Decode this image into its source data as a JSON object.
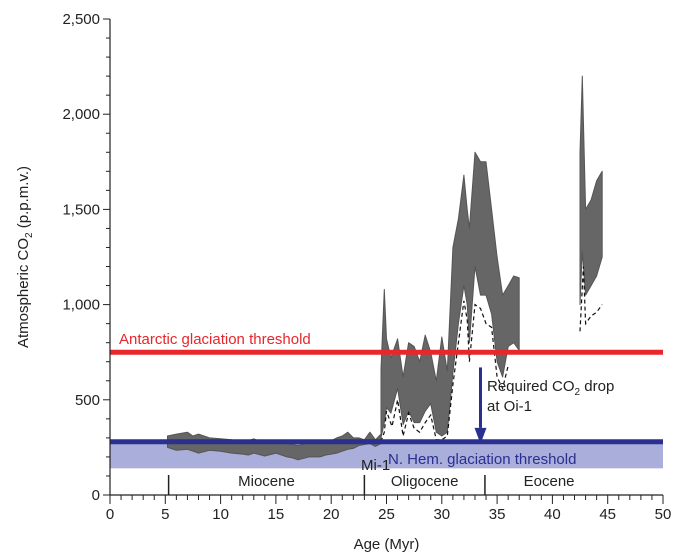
{
  "chart_data": {
    "type": "area",
    "title": "",
    "xlabel": "Age (Myr)",
    "ylabel": "Atmospheric CO₂ (p.p.m.v.)",
    "ylabel_parts": [
      "Atmospheric CO",
      "2",
      " (p.p.m.v.)"
    ],
    "xlim": [
      0,
      50
    ],
    "ylim": [
      0,
      2500
    ],
    "x_ticks": [
      0,
      5,
      10,
      15,
      20,
      25,
      30,
      35,
      40,
      45,
      50
    ],
    "x_tick_labels": [
      "0",
      "5",
      "10",
      "15",
      "20",
      "25",
      "30",
      "35",
      "40",
      "45",
      "50"
    ],
    "y_ticks": [
      0,
      500,
      1000,
      1500,
      2000,
      2500
    ],
    "y_tick_labels": [
      "0",
      "500",
      "1,000",
      "1,500",
      "2,000",
      "2,500"
    ],
    "grid": false,
    "colors": {
      "envelope": "#666666",
      "envelope_edge": "#555555",
      "antarctic": "#e8262b",
      "nhem_line": "#2b2f8f",
      "nhem_band": "#a9aedb",
      "arrow": "#2b2f8f"
    },
    "thresholds": [
      {
        "name": "Antarctic glaciation threshold",
        "value": 750
      },
      {
        "name": "N. Hem. glaciation threshold",
        "value": 280,
        "band": [
          140,
          280
        ]
      }
    ],
    "annotations": {
      "antarctic_label": "Antarctic glaciation threshold",
      "nhem_label": "N. Hem. glaciation threshold",
      "required_drop_line1_parts": [
        "Required CO",
        "2",
        " drop"
      ],
      "required_drop_line2_parts": [
        "at Oi-1"
      ],
      "mi1_label": "Mi-1"
    },
    "arrow": {
      "x": 33.5,
      "y_from": 670,
      "y_to": 300
    },
    "epochs": [
      {
        "name": "Miocene",
        "start": 5.3,
        "end": 23.0
      },
      {
        "name": "Oligocene",
        "start": 23.0,
        "end": 33.9
      },
      {
        "name": "Eocene",
        "start": 33.9,
        "end": 50
      }
    ],
    "series": [
      {
        "x": [
          5.2,
          6.0,
          7.0,
          7.5,
          8.0,
          9.0,
          10.0,
          11.0,
          12.0,
          12.5,
          13.0,
          14.0,
          15.0,
          16.0,
          16.5,
          17.0,
          18.0,
          19.0,
          19.5,
          20.0,
          20.5,
          21.0,
          21.5,
          22.0,
          22.5,
          23.0,
          23.5,
          24.0,
          24.5
        ],
        "upper": [
          310,
          320,
          330,
          310,
          320,
          300,
          295,
          290,
          280,
          285,
          295,
          270,
          285,
          270,
          265,
          260,
          275,
          280,
          270,
          285,
          300,
          310,
          330,
          300,
          300,
          290,
          330,
          290,
          320
        ],
        "lower": [
          250,
          235,
          240,
          230,
          220,
          235,
          230,
          220,
          215,
          210,
          220,
          205,
          220,
          200,
          195,
          185,
          200,
          200,
          210,
          215,
          220,
          230,
          240,
          245,
          260,
          265,
          270,
          255,
          270
        ]
      },
      {
        "x": [
          24.5,
          24.8,
          25.0,
          25.4,
          26.0,
          26.5,
          27.0,
          27.5,
          28.0,
          28.5,
          29.0,
          29.5,
          30.0,
          30.5,
          31.0,
          31.5,
          32.0,
          32.3,
          32.5,
          33.0,
          33.5,
          34.0,
          34.5,
          35.0,
          35.5,
          36.0,
          36.5,
          37.0
        ],
        "upper": [
          660,
          1080,
          820,
          720,
          820,
          620,
          800,
          780,
          700,
          840,
          750,
          600,
          830,
          650,
          1300,
          1450,
          1680,
          1500,
          1400,
          1800,
          1750,
          1750,
          1500,
          1250,
          1050,
          1100,
          1150,
          1140
        ],
        "lower": [
          300,
          380,
          460,
          430,
          560,
          370,
          440,
          380,
          380,
          440,
          480,
          330,
          310,
          330,
          640,
          900,
          1100,
          1000,
          800,
          1200,
          1050,
          1050,
          950,
          700,
          620,
          780,
          800,
          760
        ]
      },
      {
        "x": [
          42.5,
          42.7,
          43.0,
          43.5,
          44.0,
          44.5
        ],
        "upper": [
          1800,
          2200,
          1500,
          1550,
          1650,
          1700
        ],
        "lower": [
          1000,
          1280,
          1050,
          1100,
          1150,
          1250
        ]
      }
    ],
    "lower_bounds": [
      {
        "x": [
          24.5,
          24.8,
          25.0,
          25.5,
          26.0,
          26.5,
          27.0,
          27.5,
          28.0,
          28.5,
          29.0,
          29.5,
          30.0,
          30.5,
          31.0,
          31.5,
          32.0,
          32.3,
          32.5,
          33.0,
          33.5,
          34.0,
          34.5,
          35.0,
          35.5,
          36.0
        ],
        "y": [
          280,
          330,
          440,
          360,
          500,
          310,
          430,
          350,
          330,
          380,
          420,
          290,
          290,
          310,
          580,
          800,
          1020,
          920,
          700,
          1000,
          980,
          900,
          880,
          620,
          560,
          680
        ]
      },
      {
        "x": [
          42.5,
          42.8,
          43.0,
          43.5,
          44.0,
          44.5
        ],
        "y": [
          860,
          1200,
          900,
          940,
          960,
          1000
        ]
      }
    ]
  }
}
